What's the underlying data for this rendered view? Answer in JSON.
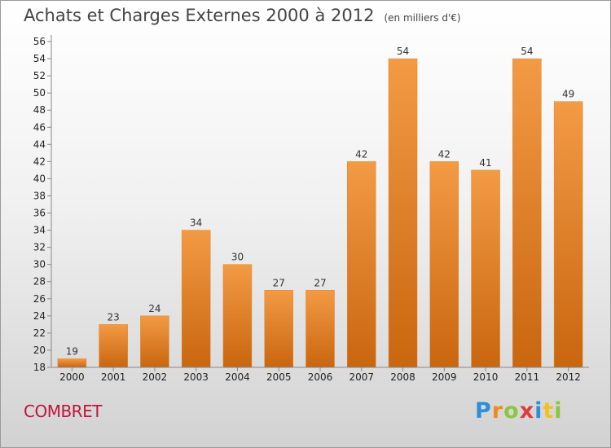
{
  "title": "Achats et Charges Externes 2000 à 2012",
  "unit": "(en milliers d'€)",
  "commune": "COMBRET",
  "logo": {
    "letters": [
      "P",
      "r",
      "o",
      "x",
      "i",
      "t",
      "i"
    ],
    "colors": [
      "#2e8ed8",
      "#f08a1e",
      "#8cc63f",
      "#e03a3a",
      "#2e8ed8",
      "#f0c21e",
      "#8cc63f"
    ]
  },
  "chart_data": {
    "type": "bar",
    "categories": [
      "2000",
      "2001",
      "2002",
      "2003",
      "2004",
      "2005",
      "2006",
      "2007",
      "2008",
      "2009",
      "2010",
      "2011",
      "2012"
    ],
    "values": [
      19,
      23,
      24,
      34,
      30,
      27,
      27,
      42,
      54,
      42,
      41,
      54,
      49
    ],
    "data_labels": [
      "19",
      "23",
      "24",
      "34",
      "30",
      "27",
      "27",
      "42",
      "54",
      "42",
      "41",
      "54",
      "49"
    ],
    "title": "Achats et Charges Externes 2000 à 2012",
    "xlabel": "",
    "ylabel": "",
    "ylim": [
      18,
      56
    ],
    "yticks": [
      18,
      20,
      22,
      24,
      26,
      28,
      30,
      32,
      34,
      36,
      38,
      40,
      42,
      44,
      46,
      48,
      50,
      52,
      54,
      56
    ],
    "grid": false,
    "bar_color": "#f39a45",
    "bar_color_dark": "#c9660f"
  }
}
